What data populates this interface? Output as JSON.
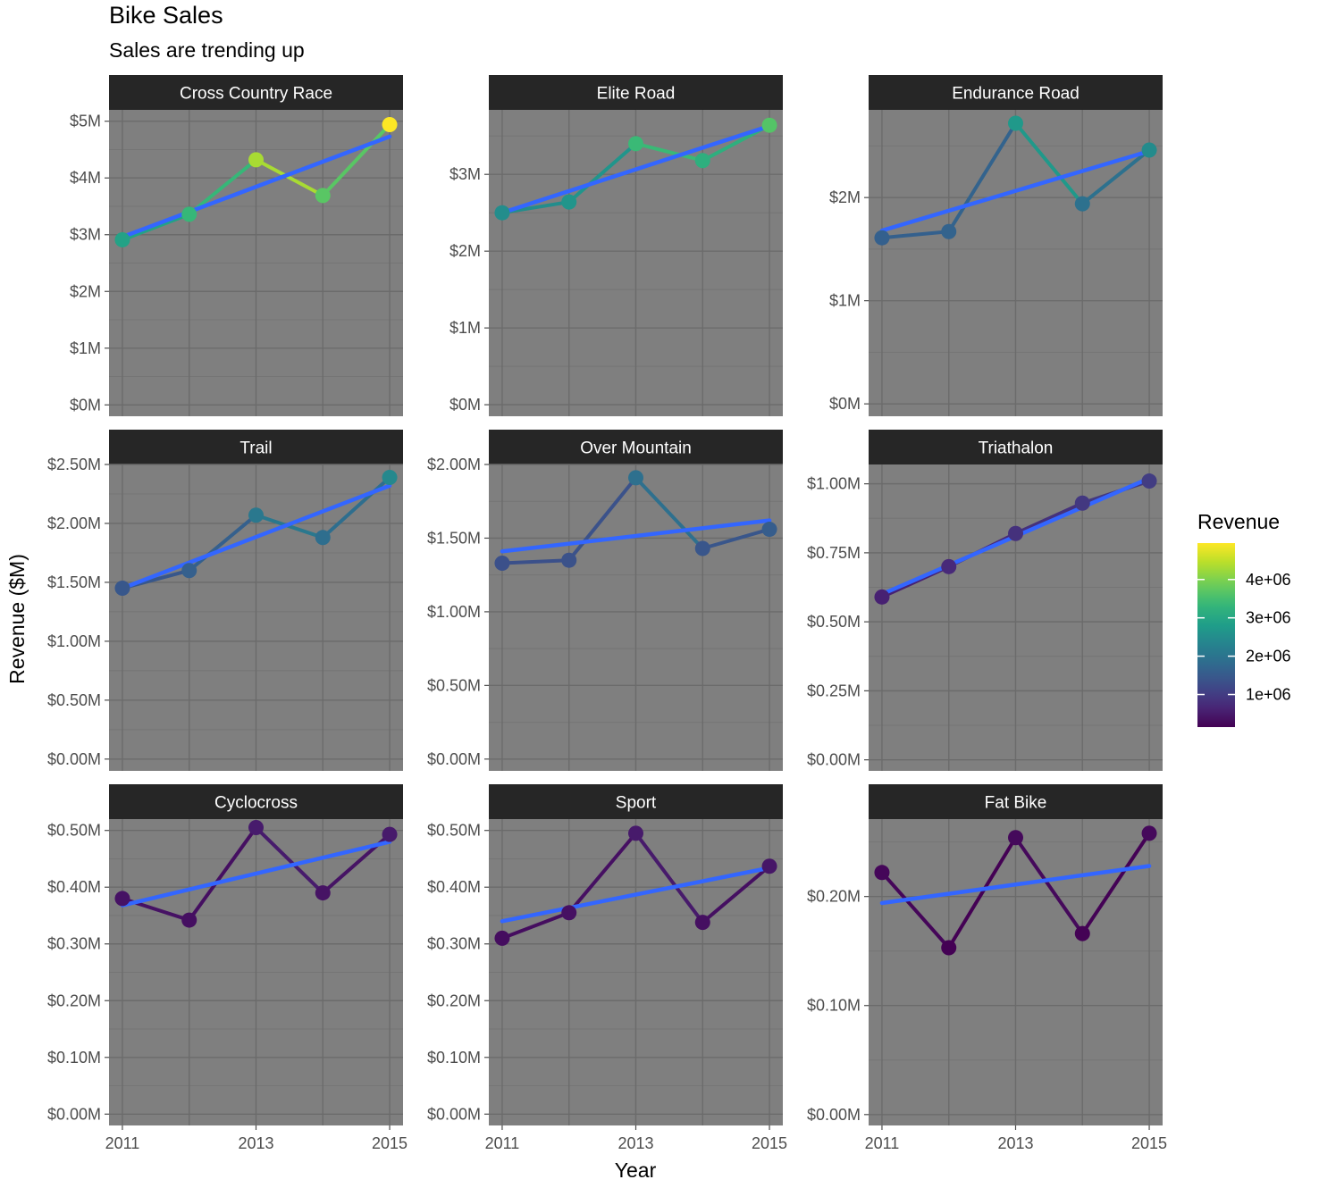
{
  "chart_data": {
    "type": "line",
    "title": "Bike Sales",
    "subtitle": "Sales are trending up",
    "xlabel": "Year",
    "ylabel": "Revenue ($M)",
    "x_ticks": [
      2011,
      2013,
      2015
    ],
    "legend": {
      "title": "Revenue",
      "placement": "right",
      "labels": [
        "4e+06",
        "3e+06",
        "2e+06",
        "1e+06"
      ],
      "label_values": [
        4000000,
        3000000,
        2000000,
        1000000
      ],
      "range": [
        150000,
        4950000
      ],
      "colormap": "viridis"
    },
    "trend_color": "#3366FF",
    "panel_background": "#7F7F7F",
    "strip_background": "#262626",
    "x": [
      2011,
      2012,
      2013,
      2014,
      2015
    ],
    "facets": [
      {
        "name": "Cross Country Race",
        "values": [
          2.91,
          3.36,
          4.32,
          3.69,
          4.94
        ],
        "trend": [
          2.96,
          4.73
        ],
        "ylim": [
          -0.2,
          5.2
        ],
        "ticks": [
          0,
          1,
          2,
          3,
          4,
          5
        ],
        "tick_labels": [
          "$0M",
          "$1M",
          "$2M",
          "$3M",
          "$4M",
          "$5M"
        ]
      },
      {
        "name": "Elite Road",
        "values": [
          2.5,
          2.64,
          3.4,
          3.18,
          3.64
        ],
        "trend": [
          2.5,
          3.63
        ],
        "ylim": [
          -0.15,
          3.84
        ],
        "ticks": [
          0,
          1,
          2,
          3
        ],
        "tick_labels": [
          "$0M",
          "$1M",
          "$2M",
          "$3M"
        ]
      },
      {
        "name": "Endurance Road",
        "values": [
          1.61,
          1.67,
          2.72,
          1.94,
          2.46
        ],
        "trend": [
          1.68,
          2.45
        ],
        "ylim": [
          -0.12,
          2.85
        ],
        "ticks": [
          0,
          1,
          2
        ],
        "tick_labels": [
          "$0M",
          "$1M",
          "$2M"
        ]
      },
      {
        "name": "Trail",
        "values": [
          1.45,
          1.6,
          2.07,
          1.88,
          2.39
        ],
        "trend": [
          1.45,
          2.32
        ],
        "ylim": [
          -0.1,
          2.5
        ],
        "ticks": [
          0,
          0.5,
          1.0,
          1.5,
          2.0,
          2.5
        ],
        "tick_labels": [
          "$0.00M",
          "$0.50M",
          "$1.00M",
          "$1.50M",
          "$2.00M",
          "$2.50M"
        ]
      },
      {
        "name": "Over Mountain",
        "values": [
          1.33,
          1.35,
          1.91,
          1.43,
          1.56
        ],
        "trend": [
          1.41,
          1.62
        ],
        "ylim": [
          -0.08,
          2.0
        ],
        "ticks": [
          0,
          0.5,
          1.0,
          1.5,
          2.0
        ],
        "tick_labels": [
          "$0.00M",
          "$0.50M",
          "$1.00M",
          "$1.50M",
          "$2.00M"
        ]
      },
      {
        "name": "Triathalon",
        "values": [
          0.59,
          0.7,
          0.82,
          0.93,
          1.01
        ],
        "trend": [
          0.6,
          1.02
        ],
        "ylim": [
          -0.04,
          1.07
        ],
        "ticks": [
          0,
          0.25,
          0.5,
          0.75,
          1.0
        ],
        "tick_labels": [
          "$0.00M",
          "$0.25M",
          "$0.50M",
          "$0.75M",
          "$1.00M"
        ]
      },
      {
        "name": "Cyclocross",
        "values": [
          0.38,
          0.342,
          0.505,
          0.39,
          0.493
        ],
        "trend": [
          0.368,
          0.48
        ],
        "ylim": [
          -0.02,
          0.52
        ],
        "ticks": [
          0,
          0.1,
          0.2,
          0.3,
          0.4,
          0.5
        ],
        "tick_labels": [
          "$0.00M",
          "$0.10M",
          "$0.20M",
          "$0.30M",
          "$0.40M",
          "$0.50M"
        ]
      },
      {
        "name": "Sport",
        "values": [
          0.31,
          0.355,
          0.495,
          0.338,
          0.437
        ],
        "trend": [
          0.34,
          0.434
        ],
        "ylim": [
          -0.02,
          0.52
        ],
        "ticks": [
          0,
          0.1,
          0.2,
          0.3,
          0.4,
          0.5
        ],
        "tick_labels": [
          "$0.00M",
          "$0.10M",
          "$0.20M",
          "$0.30M",
          "$0.40M",
          "$0.50M"
        ]
      },
      {
        "name": "Fat Bike",
        "values": [
          0.222,
          0.153,
          0.254,
          0.166,
          0.258
        ],
        "trend": [
          0.194,
          0.228
        ],
        "ylim": [
          -0.01,
          0.271
        ],
        "ticks": [
          0,
          0.1,
          0.2
        ],
        "tick_labels": [
          "$0.00M",
          "$0.10M",
          "$0.20M"
        ]
      }
    ]
  }
}
